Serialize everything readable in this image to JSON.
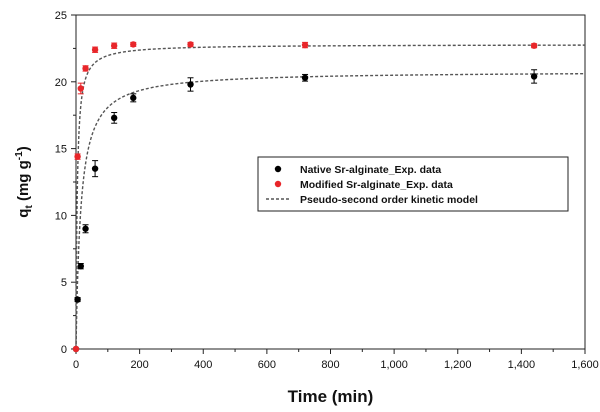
{
  "chart_data": {
    "type": "scatter",
    "xlabel": "Time (min)",
    "ylabel": {
      "main": "q",
      "sub": "t",
      "unit_pre": " (mg g",
      "sup": "-1",
      "unit_post": ")"
    },
    "xlim": [
      0,
      1600
    ],
    "ylim": [
      0,
      25
    ],
    "xticks": [
      0,
      200,
      400,
      600,
      800,
      1000,
      1200,
      1400,
      1600
    ],
    "xtick_labels": [
      "0",
      "200",
      "400",
      "600",
      "800",
      "1,000",
      "1,200",
      "1,400",
      "1,600"
    ],
    "yticks": [
      0,
      5,
      10,
      15,
      20,
      25
    ],
    "ytick_labels": [
      "0",
      "5",
      "10",
      "15",
      "20",
      "25"
    ],
    "grid": false,
    "legend_position": "center-right",
    "series": [
      {
        "name": "Native Sr-alginate_Exp. data",
        "color": "#000000",
        "marker": "circle",
        "x": [
          0,
          5,
          15,
          30,
          60,
          120,
          180,
          360,
          720,
          1440
        ],
        "y": [
          0,
          3.7,
          6.2,
          9.0,
          13.5,
          17.3,
          18.8,
          19.8,
          20.3,
          20.4
        ],
        "err": [
          0,
          0.15,
          0.2,
          0.3,
          0.6,
          0.4,
          0.3,
          0.5,
          0.25,
          0.5
        ]
      },
      {
        "name": "Modified Sr-alginate_Exp. data",
        "color": "#e8262a",
        "marker": "circle",
        "x": [
          0,
          5,
          15,
          30,
          60,
          120,
          180,
          360,
          720,
          1440
        ],
        "y": [
          0,
          14.4,
          19.5,
          21.0,
          22.4,
          22.7,
          22.8,
          22.8,
          22.75,
          22.7
        ],
        "err": [
          0,
          0.2,
          0.4,
          0.2,
          0.2,
          0.2,
          0.15,
          0.15,
          0.2,
          0.15
        ]
      },
      {
        "name": "Pseudo-second order kinetic model",
        "color": "#555555",
        "style": "dashed",
        "fits": [
          {
            "qe": 20.8,
            "k2": 0.0032
          },
          {
            "qe": 22.8,
            "k2": 0.0115
          }
        ]
      }
    ]
  }
}
